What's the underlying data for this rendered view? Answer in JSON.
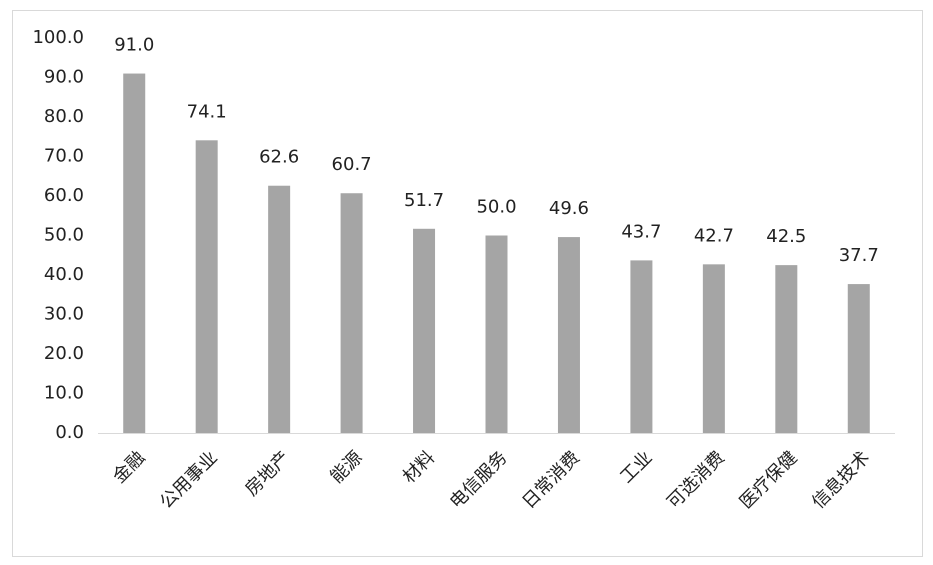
{
  "chart_data": {
    "type": "bar",
    "categories": [
      "金融",
      "公用事业",
      "房地产",
      "能源",
      "材料",
      "电信服务",
      "日常消费",
      "工业",
      "可选消费",
      "医疗保健",
      "信息技术"
    ],
    "values": [
      91.0,
      74.1,
      62.6,
      60.7,
      51.7,
      50.0,
      49.6,
      43.7,
      42.7,
      42.5,
      37.7
    ],
    "value_labels": [
      "91.0",
      "74.1",
      "62.6",
      "60.7",
      "51.7",
      "50.0",
      "49.6",
      "43.7",
      "42.7",
      "42.5",
      "37.7"
    ],
    "color": "#a5a5a5",
    "ylim": [
      0,
      100
    ],
    "yticks": [
      {
        "value": 0,
        "label": "0.0"
      },
      {
        "value": 10,
        "label": "10.0"
      },
      {
        "value": 20,
        "label": "20.0"
      },
      {
        "value": 30,
        "label": "30.0"
      },
      {
        "value": 40,
        "label": "40.0"
      },
      {
        "value": 50,
        "label": "50.0"
      },
      {
        "value": 60,
        "label": "60.0"
      },
      {
        "value": 70,
        "label": "70.0"
      },
      {
        "value": 80,
        "label": "80.0"
      },
      {
        "value": 90,
        "label": "90.0"
      },
      {
        "value": 100,
        "label": "100.0"
      }
    ],
    "grid": false
  }
}
